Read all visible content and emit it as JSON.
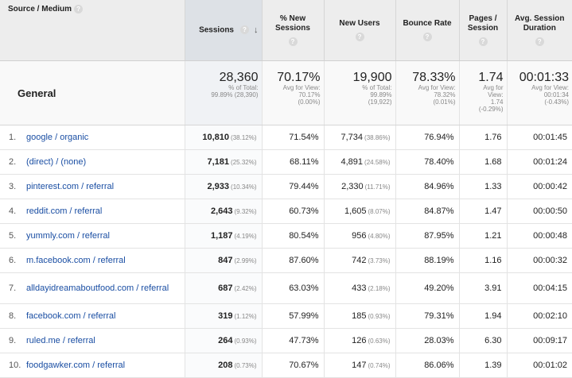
{
  "headers": {
    "source_medium": "Source / Medium",
    "sessions": "Sessions",
    "pct_new_sessions": "% New Sessions",
    "new_users": "New Users",
    "bounce_rate": "Bounce Rate",
    "pages_session": "Pages / Session",
    "avg_session_duration": "Avg. Session Duration",
    "help_glyph": "?",
    "sort_glyph": "↓",
    "icons": [
      "help-icon",
      "sort-descending-icon"
    ]
  },
  "totals": {
    "label": "General",
    "sessions": "28,360",
    "sessions_sub1": "% of Total:",
    "sessions_sub2": "99.89% (28,390)",
    "pct_new": "70.17%",
    "pct_new_sub1": "Avg for View:",
    "pct_new_sub2": "70.17%",
    "pct_new_sub3": "(0.00%)",
    "new_users": "19,900",
    "new_users_sub1": "% of Total:",
    "new_users_sub2": "99.89%",
    "new_users_sub3": "(19,922)",
    "bounce": "78.33%",
    "bounce_sub1": "Avg for View:",
    "bounce_sub2": "78.32%",
    "bounce_sub3": "(0.01%)",
    "pages": "1.74",
    "pages_sub1": "Avg for",
    "pages_sub2": "View:",
    "pages_sub3": "1.74",
    "pages_sub4": "(-0.29%)",
    "duration": "00:01:33",
    "duration_sub1": "Avg for View:",
    "duration_sub2": "00:01:34",
    "duration_sub3": "(-0.43%)"
  },
  "rows": [
    {
      "idx": "1.",
      "source": "google / organic",
      "sessions": "10,810",
      "sessions_pct": "(38.12%)",
      "pct_new": "71.54%",
      "new_users": "7,734",
      "new_users_pct": "(38.86%)",
      "bounce": "76.94%",
      "pages": "1.76",
      "duration": "00:01:45"
    },
    {
      "idx": "2.",
      "source": "(direct) / (none)",
      "sessions": "7,181",
      "sessions_pct": "(25.32%)",
      "pct_new": "68.11%",
      "new_users": "4,891",
      "new_users_pct": "(24.58%)",
      "bounce": "78.40%",
      "pages": "1.68",
      "duration": "00:01:24"
    },
    {
      "idx": "3.",
      "source": "pinterest.com / referral",
      "sessions": "2,933",
      "sessions_pct": "(10.34%)",
      "pct_new": "79.44%",
      "new_users": "2,330",
      "new_users_pct": "(11.71%)",
      "bounce": "84.96%",
      "pages": "1.33",
      "duration": "00:00:42"
    },
    {
      "idx": "4.",
      "source": "reddit.com / referral",
      "sessions": "2,643",
      "sessions_pct": "(9.32%)",
      "pct_new": "60.73%",
      "new_users": "1,605",
      "new_users_pct": "(8.07%)",
      "bounce": "84.87%",
      "pages": "1.47",
      "duration": "00:00:50"
    },
    {
      "idx": "5.",
      "source": "yummly.com / referral",
      "sessions": "1,187",
      "sessions_pct": "(4.19%)",
      "pct_new": "80.54%",
      "new_users": "956",
      "new_users_pct": "(4.80%)",
      "bounce": "87.95%",
      "pages": "1.21",
      "duration": "00:00:48"
    },
    {
      "idx": "6.",
      "source": "m.facebook.com / referral",
      "sessions": "847",
      "sessions_pct": "(2.99%)",
      "pct_new": "87.60%",
      "new_users": "742",
      "new_users_pct": "(3.73%)",
      "bounce": "88.19%",
      "pages": "1.16",
      "duration": "00:00:32"
    },
    {
      "idx": "7.",
      "source": "alldayidreamaboutfood.com / referral",
      "sessions": "687",
      "sessions_pct": "(2.42%)",
      "pct_new": "63.03%",
      "new_users": "433",
      "new_users_pct": "(2.18%)",
      "bounce": "49.20%",
      "pages": "3.91",
      "duration": "00:04:15"
    },
    {
      "idx": "8.",
      "source": "facebook.com / referral",
      "sessions": "319",
      "sessions_pct": "(1.12%)",
      "pct_new": "57.99%",
      "new_users": "185",
      "new_users_pct": "(0.93%)",
      "bounce": "79.31%",
      "pages": "1.94",
      "duration": "00:02:10"
    },
    {
      "idx": "9.",
      "source": "ruled.me / referral",
      "sessions": "264",
      "sessions_pct": "(0.93%)",
      "pct_new": "47.73%",
      "new_users": "126",
      "new_users_pct": "(0.63%)",
      "bounce": "28.03%",
      "pages": "6.30",
      "duration": "00:09:17"
    },
    {
      "idx": "10.",
      "source": "foodgawker.com / referral",
      "sessions": "208",
      "sessions_pct": "(0.73%)",
      "pct_new": "70.67%",
      "new_users": "147",
      "new_users_pct": "(0.74%)",
      "bounce": "86.06%",
      "pages": "1.39",
      "duration": "00:01:02"
    }
  ]
}
